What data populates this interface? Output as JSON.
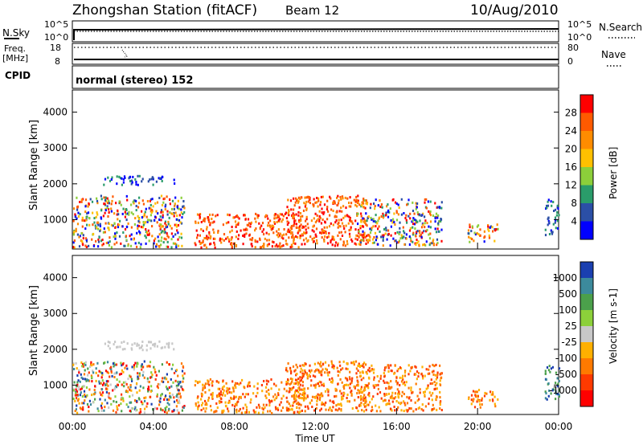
{
  "header": {
    "title": "Zhongshan Station (fitACF)",
    "beam": "Beam 12",
    "date": "10/Aug/2010"
  },
  "status_panels": {
    "nsky_label": "N.Sky",
    "nsearch_label": "N.Search",
    "nsky_ticks": [
      "10^5",
      "10^0"
    ],
    "nsearch_ticks": [
      "10^5",
      "10^0"
    ],
    "freq_label": "Freq.",
    "freq_unit": "[MHz]",
    "freq_ticks": [
      "18",
      "8"
    ],
    "nave_label": "Nave",
    "nave_ticks": [
      "80",
      "0"
    ],
    "cpid_label": "CPID",
    "cpid_text": "normal (stereo) 152"
  },
  "chart_data": [
    {
      "type": "heatmap",
      "name": "power",
      "ylabel": "Slant Range [km]",
      "xlabel": "Time UT",
      "x_ticks": [
        "00:00",
        "04:00",
        "08:00",
        "12:00",
        "16:00",
        "20:00",
        "00:00"
      ],
      "y_ticks": [
        "1000",
        "2000",
        "3000",
        "4000"
      ],
      "xlim_hours": [
        0,
        24
      ],
      "ylim_km": [
        180,
        4620
      ],
      "colorbar": {
        "label": "Power [dB]",
        "ticks": [
          "28",
          "24",
          "20",
          "16",
          "12",
          "8",
          "4"
        ],
        "colors": [
          "#ff0000",
          "#ff5a00",
          "#ff8c00",
          "#ffc000",
          "#8ccf3a",
          "#2a9c6a",
          "#2b4fa6",
          "#0000ff"
        ]
      },
      "echo_regions": [
        {
          "t0": 0.0,
          "t1": 5.5,
          "r0": 250,
          "r1": 1700,
          "level": "mixed"
        },
        {
          "t0": 1.5,
          "t1": 5.0,
          "r0": 2000,
          "r1": 2250,
          "level": "low"
        },
        {
          "t0": 6.0,
          "t1": 11.5,
          "r0": 250,
          "r1": 1200,
          "level": "high"
        },
        {
          "t0": 10.5,
          "t1": 14.5,
          "r0": 300,
          "r1": 1700,
          "level": "high"
        },
        {
          "t0": 14.0,
          "t1": 18.2,
          "r0": 300,
          "r1": 1600,
          "level": "mixed"
        },
        {
          "t0": 19.5,
          "t1": 21.0,
          "r0": 400,
          "r1": 900,
          "level": "mixed"
        },
        {
          "t0": 23.3,
          "t1": 24.0,
          "r0": 600,
          "r1": 1600,
          "level": "low"
        }
      ]
    },
    {
      "type": "heatmap",
      "name": "velocity",
      "ylabel": "Slant Range [km]",
      "xlabel": "Time UT",
      "x_ticks": [
        "00:00",
        "04:00",
        "08:00",
        "12:00",
        "16:00",
        "20:00",
        "00:00"
      ],
      "y_ticks": [
        "1000",
        "2000",
        "3000",
        "4000"
      ],
      "xlim_hours": [
        0,
        24
      ],
      "ylim_km": [
        180,
        4620
      ],
      "colorbar": {
        "label": "Velocity [m s-1]",
        "ticks": [
          "1000",
          "500",
          "100",
          "25",
          "-25",
          "-100",
          "-500",
          "-1000"
        ],
        "colors": [
          "#1a3fb0",
          "#3c8a9c",
          "#4ba04b",
          "#8cd03a",
          "#c8c8c8",
          "#ffb000",
          "#ff7a00",
          "#ff3a00",
          "#ff0000"
        ]
      },
      "echo_regions": [
        {
          "t0": 0.0,
          "t1": 5.5,
          "r0": 250,
          "r1": 1700,
          "level": "mixed"
        },
        {
          "t0": 1.5,
          "t1": 5.0,
          "r0": 2000,
          "r1": 2250,
          "level": "zero"
        },
        {
          "t0": 6.0,
          "t1": 11.5,
          "r0": 250,
          "r1": 1200,
          "level": "neg"
        },
        {
          "t0": 10.5,
          "t1": 14.5,
          "r0": 300,
          "r1": 1700,
          "level": "neg"
        },
        {
          "t0": 14.0,
          "t1": 18.2,
          "r0": 300,
          "r1": 1600,
          "level": "neg"
        },
        {
          "t0": 19.5,
          "t1": 21.0,
          "r0": 400,
          "r1": 900,
          "level": "neg"
        },
        {
          "t0": 23.3,
          "t1": 24.0,
          "r0": 600,
          "r1": 1600,
          "level": "pos"
        }
      ]
    }
  ]
}
